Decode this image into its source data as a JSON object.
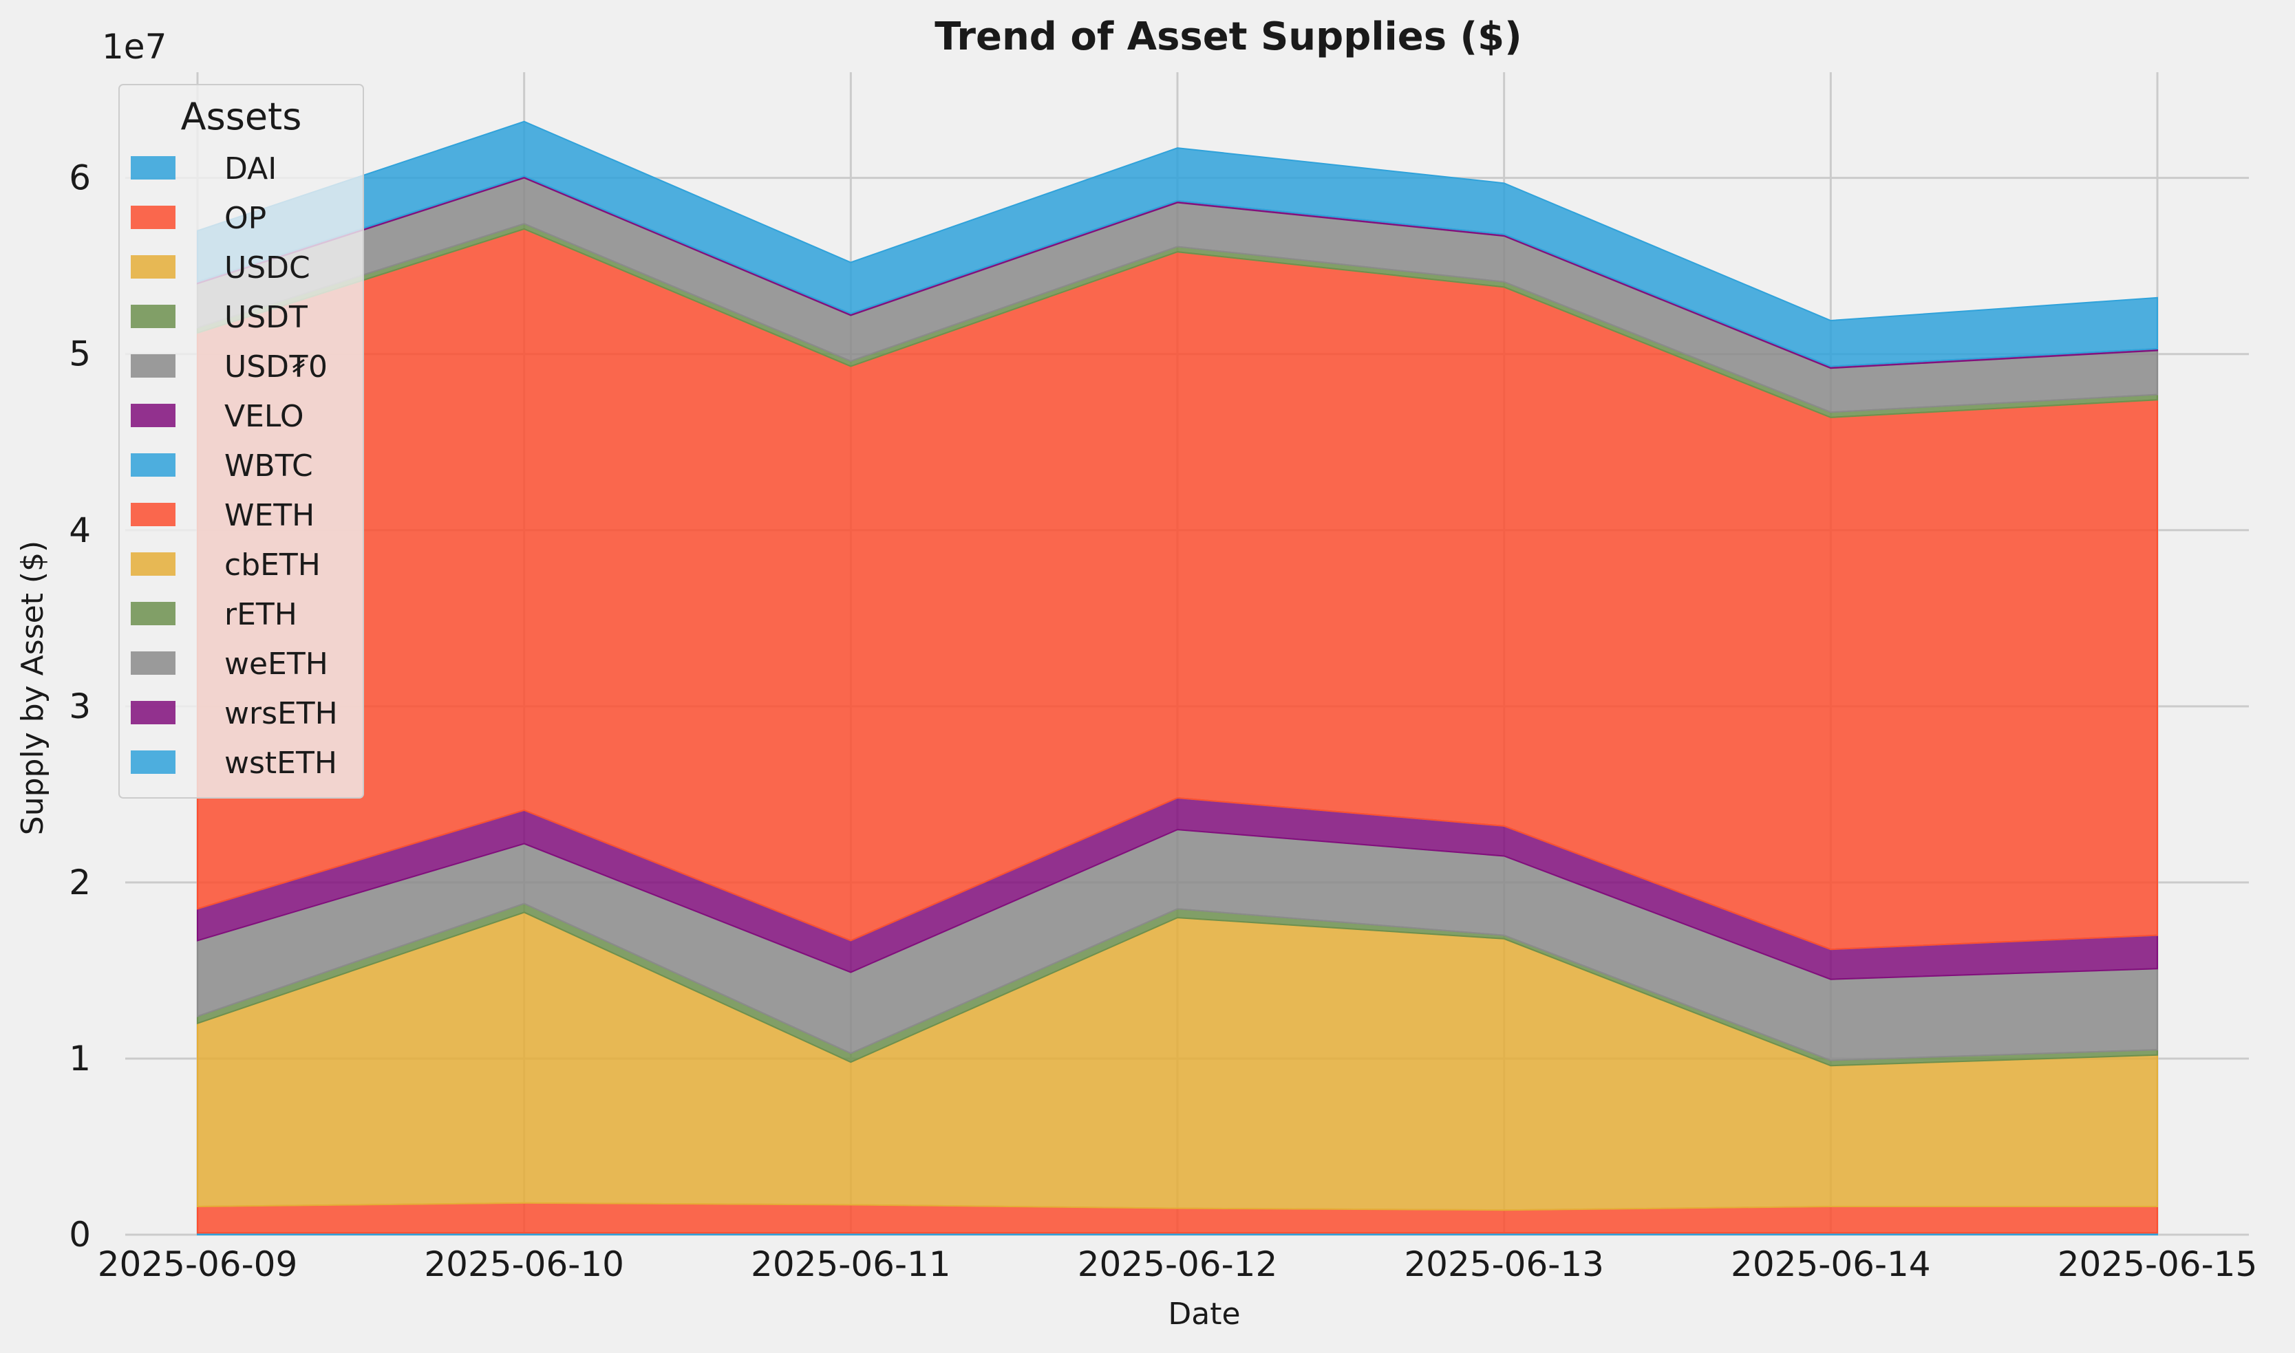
{
  "chart_data": {
    "type": "area",
    "stacked": true,
    "title": "Trend of Asset Supplies ($)",
    "xlabel": "Date",
    "ylabel": "Supply by Asset ($)",
    "y_multiplier_label": "1e7",
    "y_tick_labels": [
      "0",
      "1",
      "2",
      "3",
      "4",
      "5",
      "6"
    ],
    "y_tick_values": [
      0,
      10000000,
      20000000,
      30000000,
      40000000,
      50000000,
      60000000
    ],
    "ylim": [
      0,
      66000000
    ],
    "categories": [
      "2025-06-09",
      "2025-06-10",
      "2025-06-11",
      "2025-06-12",
      "2025-06-13",
      "2025-06-14",
      "2025-06-15"
    ],
    "legend_title": "Assets",
    "legend_position": "top-left",
    "grid": true,
    "series": [
      {
        "name": "DAI",
        "color": "#30a2da",
        "values": [
          100000,
          100000,
          100000,
          100000,
          100000,
          100000,
          100000
        ]
      },
      {
        "name": "OP",
        "color": "#fc4f30",
        "values": [
          1500000,
          1700000,
          1600000,
          1400000,
          1300000,
          1500000,
          1500000
        ]
      },
      {
        "name": "USDC",
        "color": "#e5ae38",
        "values": [
          10400000,
          16500000,
          8100000,
          16500000,
          15400000,
          8000000,
          8600000
        ]
      },
      {
        "name": "USDT",
        "color": "#6d904f",
        "values": [
          400000,
          500000,
          500000,
          500000,
          200000,
          300000,
          300000
        ]
      },
      {
        "name": "USD₮0",
        "color": "#8b8b8b",
        "values": [
          4300000,
          3400000,
          4600000,
          4500000,
          4500000,
          4600000,
          4600000
        ]
      },
      {
        "name": "VELO",
        "color": "#810f7c",
        "values": [
          1800000,
          1900000,
          1800000,
          1800000,
          1700000,
          1700000,
          1900000
        ]
      },
      {
        "name": "WBTC",
        "color": "#30a2da",
        "values": [
          0,
          0,
          0,
          0,
          0,
          0,
          0
        ]
      },
      {
        "name": "WETH",
        "color": "#fc4f30",
        "values": [
          32700000,
          33000000,
          32600000,
          31000000,
          30600000,
          30200000,
          30400000
        ]
      },
      {
        "name": "cbETH",
        "color": "#e5ae38",
        "values": [
          0,
          0,
          0,
          0,
          0,
          0,
          0
        ]
      },
      {
        "name": "rETH",
        "color": "#6d904f",
        "values": [
          300000,
          300000,
          300000,
          300000,
          300000,
          300000,
          300000
        ]
      },
      {
        "name": "weETH",
        "color": "#8b8b8b",
        "values": [
          2500000,
          2600000,
          2600000,
          2500000,
          2600000,
          2500000,
          2500000
        ]
      },
      {
        "name": "wrsETH",
        "color": "#810f7c",
        "values": [
          100000,
          100000,
          100000,
          100000,
          100000,
          100000,
          100000
        ]
      },
      {
        "name": "wstETH",
        "color": "#30a2da",
        "values": [
          2900000,
          3100000,
          2900000,
          3000000,
          2900000,
          2600000,
          2900000
        ]
      }
    ]
  }
}
